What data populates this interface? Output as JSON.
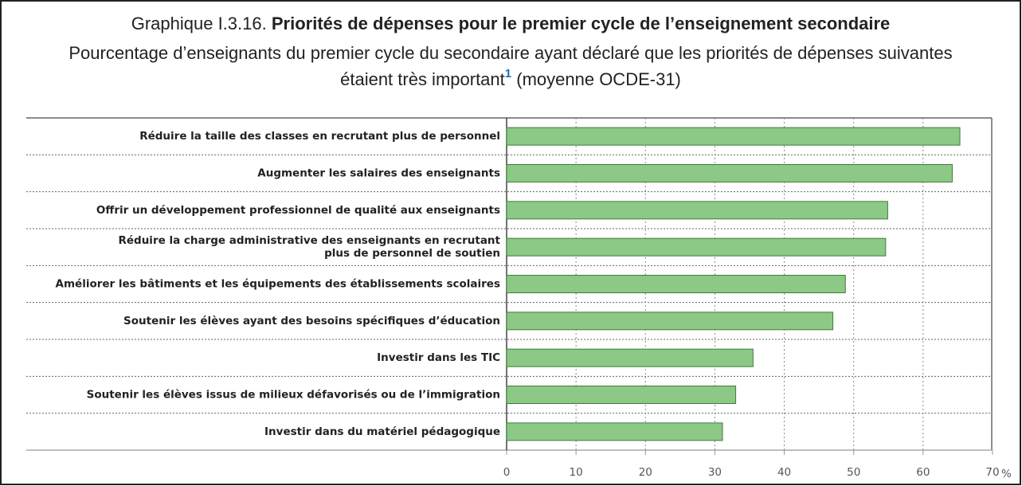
{
  "chart_data": {
    "type": "bar",
    "orientation": "horizontal",
    "title_prefix": "Graphique I.3.16.",
    "title": "Priorités de dépenses pour le premier cycle de l’enseignement secondaire",
    "subtitle_line1": "Pourcentage d’enseignants du premier cycle du secondaire ayant déclaré que les priorités de dépenses suivantes",
    "subtitle_line2": "étaient très important",
    "footnote_marker": "1",
    "subtitle_line2_end": "(moyenne OCDE-31)",
    "categories": [
      "Réduire la taille des classes en recrutant plus de personnel",
      "Augmenter les salaires des enseignants",
      "Offrir un développement professionnel de qualité aux enseignants",
      "Réduire la charge administrative des enseignants en recrutant\nplus de personnel de soutien",
      "Améliorer les bâtiments et les équipements des établissements scolaires",
      "Soutenir les élèves ayant des besoins spécifiques d’éducation",
      "Investir dans les TIC",
      "Soutenir les élèves issus de milieux défavorisés ou de l’immigration",
      "Investir dans du matériel pédagogique"
    ],
    "values": [
      65.3,
      64.2,
      54.9,
      54.6,
      48.8,
      47.0,
      35.5,
      33.0,
      31.1
    ],
    "color": "#8cc886",
    "xlim": [
      0,
      70
    ],
    "xticks": [
      0,
      10,
      20,
      30,
      40,
      50,
      60,
      70
    ],
    "x_unit": "%",
    "grid": true
  }
}
